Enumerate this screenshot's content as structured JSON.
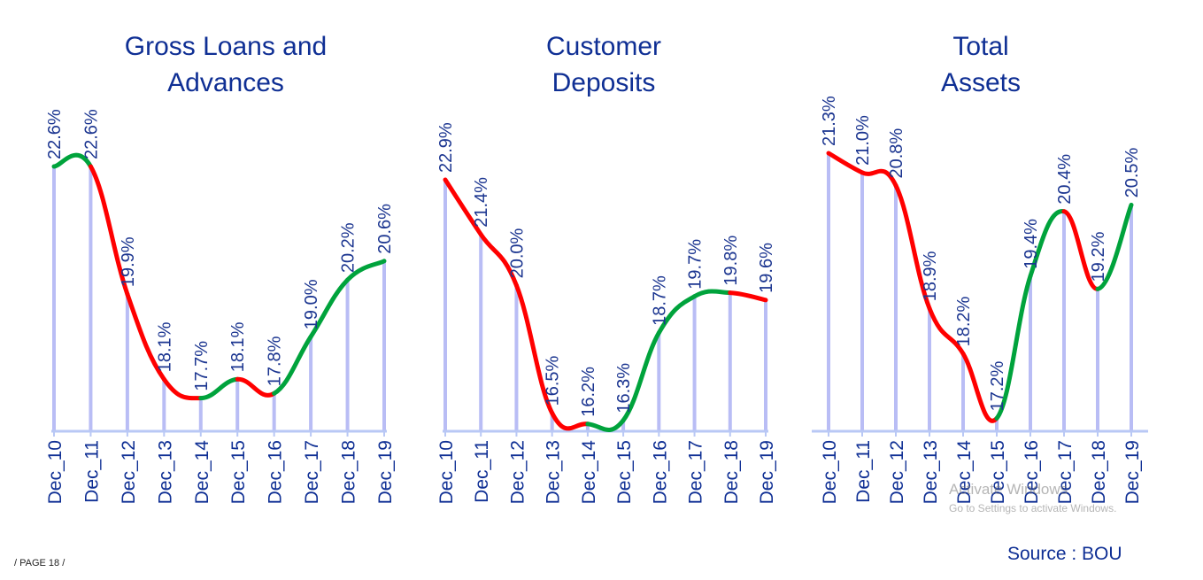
{
  "chart_data": [
    {
      "type": "line",
      "title": [
        "Gross Loans and",
        "Advances"
      ],
      "categories": [
        "Dec_10",
        "Dec_11",
        "Dec_12",
        "Dec_13",
        "Dec_14",
        "Dec_15",
        "Dec_16",
        "Dec_17",
        "Dec_18",
        "Dec_19"
      ],
      "values": [
        22.6,
        22.6,
        19.9,
        18.1,
        17.7,
        18.1,
        17.8,
        19.0,
        20.2,
        20.6
      ],
      "labels": [
        "22.6%",
        "22.6%",
        "19.9%",
        "18.1%",
        "17.7%",
        "18.1%",
        "17.8%",
        "19.0%",
        "20.2%",
        "20.6%"
      ],
      "ylim": [
        17.0,
        23.0
      ],
      "smooth": true,
      "grid": false
    },
    {
      "type": "line",
      "title": [
        "Customer",
        "Deposits"
      ],
      "categories": [
        "Dec_10",
        "Dec_11",
        "Dec_12",
        "Dec_13",
        "Dec_14",
        "Dec_15",
        "Dec_16",
        "Dec_17",
        "Dec_18",
        "Dec_19"
      ],
      "values": [
        22.9,
        21.4,
        20.0,
        16.5,
        16.2,
        16.3,
        18.7,
        19.7,
        19.8,
        19.6
      ],
      "labels": [
        "22.9%",
        "21.4%",
        "20.0%",
        "16.5%",
        "16.2%",
        "16.3%",
        "18.7%",
        "19.7%",
        "19.8%",
        "19.6%"
      ],
      "ylim": [
        16.0,
        23.5
      ],
      "smooth": true,
      "grid": false
    },
    {
      "type": "line",
      "title": [
        "Total",
        "Assets"
      ],
      "categories": [
        "Dec_10",
        "Dec_11",
        "Dec_12",
        "Dec_13",
        "Dec_14",
        "Dec_15",
        "Dec_16",
        "Dec_17",
        "Dec_18",
        "Dec_19"
      ],
      "values": [
        21.3,
        21.0,
        20.8,
        18.9,
        18.2,
        17.2,
        19.4,
        20.4,
        19.2,
        20.5
      ],
      "labels": [
        "21.3%",
        "21.0%",
        "20.8%",
        "18.9%",
        "18.2%",
        "17.2%",
        "19.4%",
        "20.4%",
        "19.2%",
        "20.5%"
      ],
      "ylim": [
        17.0,
        21.7
      ],
      "smooth": true,
      "grid": false
    }
  ],
  "colors": {
    "increase": "#00a33c",
    "decrease": "#ff0000",
    "drop_line": "#b9bdf5",
    "axis": "#b9c8f5",
    "text": "#0f2f94"
  },
  "footer": {
    "page": "/ PAGE 18 /",
    "source": "Source : BOU",
    "watermark_title": "Activate Windows",
    "watermark_sub": "Go to Settings to activate Windows."
  }
}
